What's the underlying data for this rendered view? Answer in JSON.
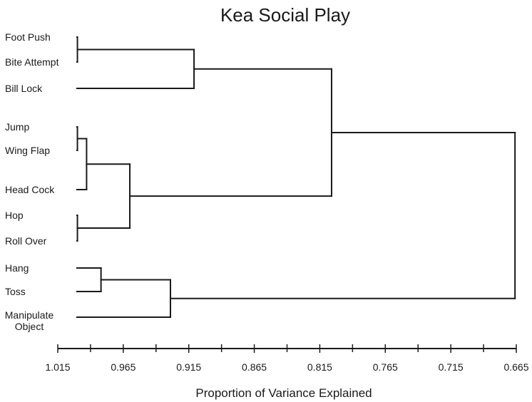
{
  "chart_data": {
    "type": "dendrogram",
    "title": "Kea Social Play",
    "xlabel": "Proportion of Variance Explained",
    "xlim": [
      1.015,
      0.665
    ],
    "x_direction": "reversed",
    "x_ticks": [
      1.015,
      0.965,
      0.915,
      0.865,
      0.815,
      0.765,
      0.715,
      0.665
    ],
    "x_tick_labels": [
      "1.015",
      "0.965",
      "0.915",
      "0.865",
      "0.815",
      "0.765",
      "0.715",
      "0.665"
    ],
    "leaves": [
      {
        "label": "Foot Push"
      },
      {
        "label": "Bite Attempt"
      },
      {
        "label": "Bill Lock"
      },
      {
        "label": "Jump"
      },
      {
        "label": "Wing Flap"
      },
      {
        "label": "Head Cock"
      },
      {
        "label": "Hop"
      },
      {
        "label": "Roll Over"
      },
      {
        "label": "Hang"
      },
      {
        "label": "Toss"
      },
      {
        "label": "Manipulate\nObject"
      }
    ],
    "merges": [
      {
        "id": "c1",
        "children": [
          "Foot Push",
          "Bite Attempt"
        ],
        "height": 1.0
      },
      {
        "id": "c2",
        "children": [
          "c1",
          "Bill Lock"
        ],
        "height": 0.911
      },
      {
        "id": "c3",
        "children": [
          "Jump",
          "Wing Flap"
        ],
        "height": 1.0
      },
      {
        "id": "c4",
        "children": [
          "c3",
          "Head Cock"
        ],
        "height": 0.993
      },
      {
        "id": "c5",
        "children": [
          "Hop",
          "Roll Over"
        ],
        "height": 1.0
      },
      {
        "id": "c6",
        "children": [
          "c4",
          "c5"
        ],
        "height": 0.96
      },
      {
        "id": "c7",
        "children": [
          "c2",
          "c6"
        ],
        "height": 0.806
      },
      {
        "id": "c8",
        "children": [
          "Hang",
          "Toss"
        ],
        "height": 0.982
      },
      {
        "id": "c9",
        "children": [
          "c8",
          "Manipulate\nObject"
        ],
        "height": 0.929
      },
      {
        "id": "c10",
        "children": [
          "c7",
          "c9"
        ],
        "height": 0.666
      }
    ]
  }
}
